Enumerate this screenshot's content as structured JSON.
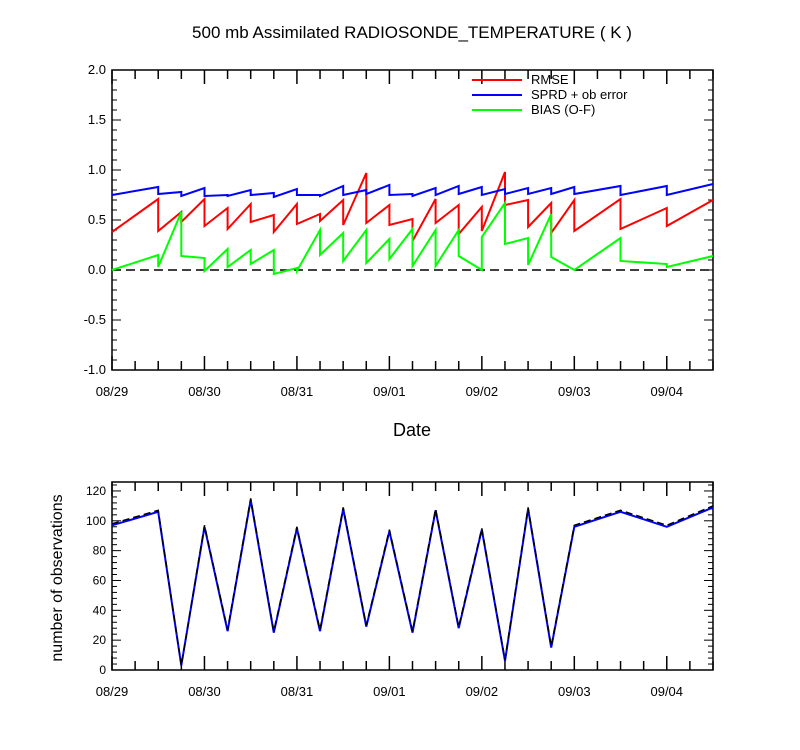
{
  "chart_data": [
    {
      "type": "line",
      "title": "500 mb Assimilated RADIOSONDE_TEMPERATURE ( K )",
      "xlabel": "Date",
      "ylabel": "",
      "x_days": [
        0,
        6.5
      ],
      "ylim": [
        -1.0,
        2.0
      ],
      "yticks": [
        "2.0",
        "1.5",
        "1.0",
        "0.5",
        "0.0",
        "-0.5",
        "-1.0"
      ],
      "ytick_values": [
        2.0,
        1.5,
        1.0,
        0.5,
        0.0,
        -0.5,
        -1.0
      ],
      "xtick_labels": [
        "08/29",
        "08/30",
        "08/31",
        "09/01",
        "09/02",
        "09/03",
        "09/04"
      ],
      "zero_line": "dashed",
      "legend": {
        "position": "top-right",
        "entries": [
          "RMSE",
          "SPRD + ob error",
          "BIAS (O-F)"
        ]
      },
      "series": [
        {
          "name": "RMSE",
          "color": "#ff0000",
          "points": [
            [
              0,
              0.38
            ],
            [
              0.5,
              0.71
            ],
            [
              0.5,
              0.39
            ],
            [
              0.75,
              0.58
            ],
            [
              0.75,
              0.48
            ],
            [
              1,
              0.71
            ],
            [
              1,
              0.44
            ],
            [
              1.25,
              0.62
            ],
            [
              1.25,
              0.41
            ],
            [
              1.5,
              0.66
            ],
            [
              1.5,
              0.48
            ],
            [
              1.75,
              0.55
            ],
            [
              1.75,
              0.38
            ],
            [
              2,
              0.66
            ],
            [
              2,
              0.46
            ],
            [
              2.25,
              0.56
            ],
            [
              2.25,
              0.49
            ],
            [
              2.5,
              0.7
            ],
            [
              2.5,
              0.45
            ],
            [
              2.75,
              0.97
            ],
            [
              2.75,
              0.47
            ],
            [
              3,
              0.65
            ],
            [
              3,
              0.45
            ],
            [
              3.25,
              0.51
            ],
            [
              3.25,
              0.29
            ],
            [
              3.5,
              0.71
            ],
            [
              3.5,
              0.47
            ],
            [
              3.75,
              0.65
            ],
            [
              3.75,
              0.36
            ],
            [
              4,
              0.63
            ],
            [
              4,
              0.39
            ],
            [
              4.25,
              0.98
            ],
            [
              4.25,
              0.65
            ],
            [
              4.5,
              0.7
            ],
            [
              4.5,
              0.43
            ],
            [
              4.75,
              0.67
            ],
            [
              4.75,
              0.37
            ],
            [
              5,
              0.7
            ],
            [
              5,
              0.39
            ],
            [
              5.5,
              0.71
            ],
            [
              5.5,
              0.41
            ],
            [
              6,
              0.62
            ],
            [
              6,
              0.44
            ],
            [
              6.5,
              0.7
            ]
          ]
        },
        {
          "name": "SPRD + ob error",
          "color": "#0000ff",
          "points": [
            [
              0,
              0.75
            ],
            [
              0.5,
              0.83
            ],
            [
              0.5,
              0.76
            ],
            [
              0.75,
              0.78
            ],
            [
              0.75,
              0.74
            ],
            [
              1,
              0.82
            ],
            [
              1,
              0.74
            ],
            [
              1.25,
              0.75
            ],
            [
              1.25,
              0.74
            ],
            [
              1.5,
              0.8
            ],
            [
              1.5,
              0.75
            ],
            [
              1.75,
              0.77
            ],
            [
              1.75,
              0.73
            ],
            [
              2,
              0.81
            ],
            [
              2,
              0.75
            ],
            [
              2.25,
              0.75
            ],
            [
              2.25,
              0.74
            ],
            [
              2.5,
              0.84
            ],
            [
              2.5,
              0.75
            ],
            [
              2.75,
              0.8
            ],
            [
              2.75,
              0.76
            ],
            [
              3,
              0.85
            ],
            [
              3,
              0.75
            ],
            [
              3.25,
              0.76
            ],
            [
              3.25,
              0.74
            ],
            [
              3.5,
              0.82
            ],
            [
              3.5,
              0.75
            ],
            [
              3.75,
              0.84
            ],
            [
              3.75,
              0.76
            ],
            [
              4,
              0.83
            ],
            [
              4,
              0.75
            ],
            [
              4.25,
              0.81
            ],
            [
              4.25,
              0.76
            ],
            [
              4.5,
              0.82
            ],
            [
              4.5,
              0.76
            ],
            [
              4.75,
              0.82
            ],
            [
              4.75,
              0.76
            ],
            [
              5,
              0.83
            ],
            [
              5,
              0.76
            ],
            [
              5.5,
              0.84
            ],
            [
              5.5,
              0.75
            ],
            [
              6,
              0.84
            ],
            [
              6,
              0.75
            ],
            [
              6.5,
              0.86
            ]
          ]
        },
        {
          "name": "BIAS (O-F)",
          "color": "#00ff00",
          "points": [
            [
              0,
              0.0
            ],
            [
              0.5,
              0.15
            ],
            [
              0.5,
              0.03
            ],
            [
              0.75,
              0.58
            ],
            [
              0.75,
              0.14
            ],
            [
              1,
              0.12
            ],
            [
              1,
              -0.01
            ],
            [
              1.25,
              0.21
            ],
            [
              1.25,
              0.03
            ],
            [
              1.5,
              0.2
            ],
            [
              1.5,
              0.06
            ],
            [
              1.75,
              0.2
            ],
            [
              1.75,
              -0.04
            ],
            [
              2,
              0.02
            ],
            [
              2,
              -0.01
            ],
            [
              2.25,
              0.4
            ],
            [
              2.25,
              0.15
            ],
            [
              2.5,
              0.37
            ],
            [
              2.5,
              0.09
            ],
            [
              2.75,
              0.4
            ],
            [
              2.75,
              0.07
            ],
            [
              3,
              0.31
            ],
            [
              3,
              0.11
            ],
            [
              3.25,
              0.41
            ],
            [
              3.25,
              0.04
            ],
            [
              3.5,
              0.4
            ],
            [
              3.5,
              0.04
            ],
            [
              3.75,
              0.4
            ],
            [
              3.75,
              0.14
            ],
            [
              4,
              0.0
            ],
            [
              4,
              0.33
            ],
            [
              4.25,
              0.67
            ],
            [
              4.25,
              0.26
            ],
            [
              4.5,
              0.32
            ],
            [
              4.5,
              0.05
            ],
            [
              4.75,
              0.56
            ],
            [
              4.75,
              0.13
            ],
            [
              5,
              0.0
            ],
            [
              5.5,
              0.32
            ],
            [
              5.5,
              0.09
            ],
            [
              6,
              0.06
            ],
            [
              6,
              0.03
            ],
            [
              6.5,
              0.14
            ]
          ]
        }
      ]
    },
    {
      "type": "line",
      "title": "",
      "xlabel": "",
      "ylabel": "number of observations",
      "ylim": [
        0,
        126
      ],
      "yticks": [
        "120",
        "100",
        "80",
        "60",
        "40",
        "20",
        "0"
      ],
      "ytick_values": [
        120,
        100,
        80,
        60,
        40,
        20,
        0
      ],
      "xtick_labels": [
        "08/29",
        "08/30",
        "08/31",
        "09/01",
        "09/02",
        "09/03",
        "09/04"
      ],
      "series": [
        {
          "name": "observations",
          "color": "#0000ff",
          "style": "solid",
          "points": [
            [
              0,
              97
            ],
            [
              0.5,
              106
            ],
            [
              0.75,
              3
            ],
            [
              1,
              96
            ],
            [
              1.25,
              26
            ],
            [
              1.5,
              114
            ],
            [
              1.75,
              25
            ],
            [
              2,
              95
            ],
            [
              2.25,
              26
            ],
            [
              2.5,
              108
            ],
            [
              2.75,
              29
            ],
            [
              3,
              93
            ],
            [
              3.25,
              25
            ],
            [
              3.5,
              107
            ],
            [
              3.75,
              28
            ],
            [
              4,
              94
            ],
            [
              4.25,
              6
            ],
            [
              4.5,
              108
            ],
            [
              4.75,
              15
            ],
            [
              5,
              96
            ],
            [
              5.5,
              106
            ],
            [
              6,
              96
            ],
            [
              6.5,
              109
            ]
          ]
        },
        {
          "name": "observations (dashed)",
          "color": "#000000",
          "style": "dashed",
          "points": [
            [
              0,
              98
            ],
            [
              0.5,
              107
            ],
            [
              0.75,
              3
            ],
            [
              1,
              97
            ],
            [
              1.25,
              27
            ],
            [
              1.5,
              115
            ],
            [
              1.75,
              26
            ],
            [
              2,
              96
            ],
            [
              2.25,
              27
            ],
            [
              2.5,
              109
            ],
            [
              2.75,
              30
            ],
            [
              3,
              94
            ],
            [
              3.25,
              26
            ],
            [
              3.5,
              108
            ],
            [
              3.75,
              29
            ],
            [
              4,
              95
            ],
            [
              4.25,
              7
            ],
            [
              4.5,
              109
            ],
            [
              4.75,
              16
            ],
            [
              5,
              97
            ],
            [
              5.5,
              107
            ],
            [
              6,
              97
            ],
            [
              6.5,
              110
            ]
          ]
        }
      ]
    }
  ]
}
